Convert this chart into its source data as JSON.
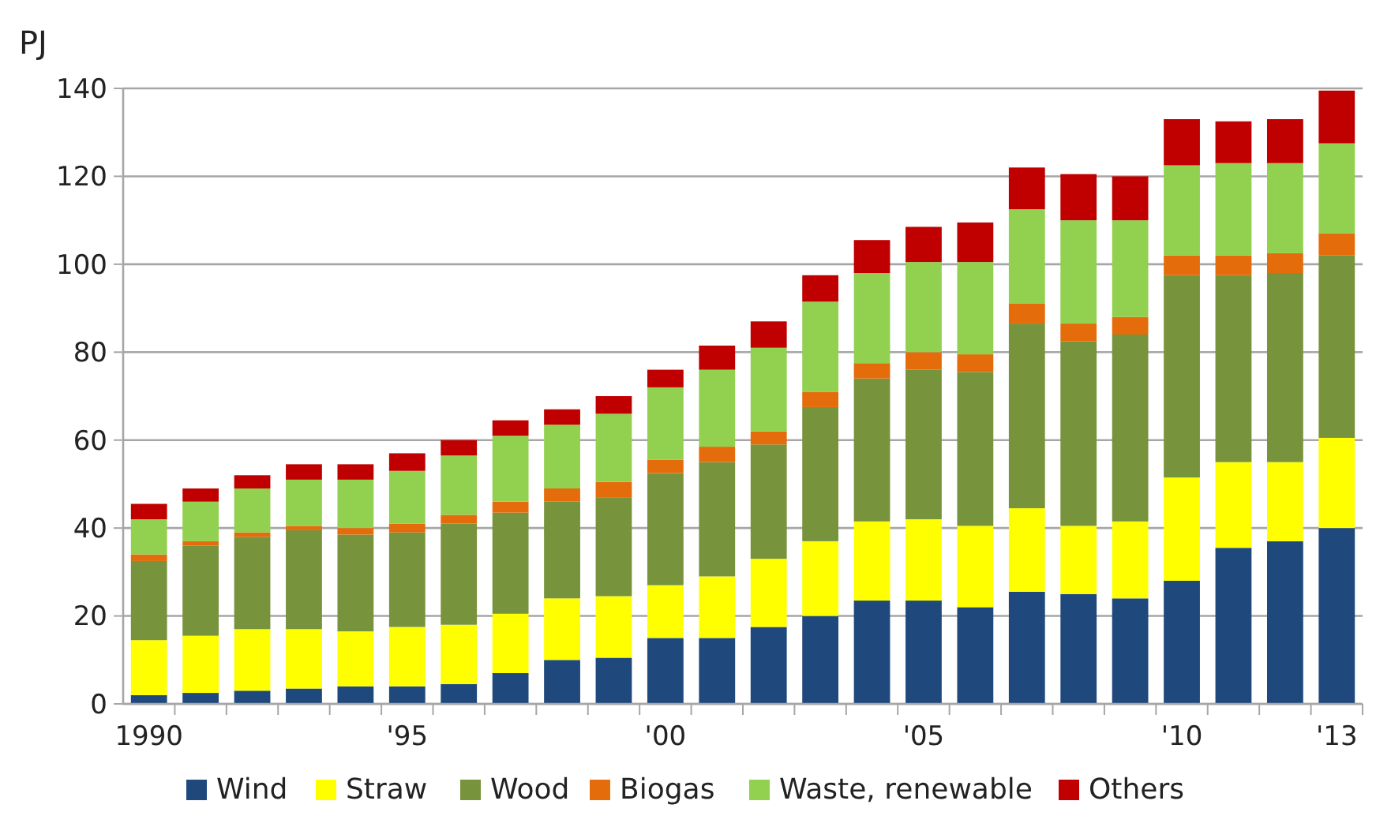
{
  "chart_data": {
    "type": "bar",
    "stacked": true,
    "ylabel": "PJ",
    "categories": [
      "1990",
      null,
      null,
      null,
      null,
      "'95",
      null,
      null,
      null,
      null,
      "'00",
      null,
      null,
      null,
      null,
      "'05",
      null,
      null,
      null,
      null,
      "'10",
      null,
      null,
      "'13"
    ],
    "ylim": [
      0,
      140
    ],
    "yticks": [
      0,
      20,
      40,
      60,
      80,
      100,
      120,
      140
    ],
    "grid": "y",
    "legend": "bottom",
    "series": [
      {
        "name": "Wind",
        "color": "#1f497d",
        "values": [
          2,
          2.5,
          3,
          3.5,
          4,
          4,
          4.5,
          7,
          10,
          10.5,
          15,
          15,
          17.5,
          20,
          23.5,
          23.5,
          22,
          25.5,
          25,
          24,
          28,
          35.5,
          37,
          40
        ]
      },
      {
        "name": "Straw",
        "color": "#ffff00",
        "values": [
          12.5,
          13,
          14,
          13.5,
          12.5,
          13.5,
          13.5,
          13.5,
          14,
          14,
          12,
          14,
          15.5,
          17,
          18,
          18.5,
          18.5,
          19,
          15.5,
          17.5,
          23.5,
          19.5,
          18,
          20.5
        ]
      },
      {
        "name": "Wood",
        "color": "#77933c",
        "values": [
          18,
          20.5,
          21,
          22.5,
          22,
          21.5,
          23,
          23,
          22,
          22.5,
          25.5,
          26,
          26,
          30.5,
          32.5,
          34,
          35,
          42,
          42,
          42.5,
          46,
          42.5,
          43,
          41.5
        ]
      },
      {
        "name": "Biogas",
        "color": "#e46c0a",
        "values": [
          1.5,
          1,
          1,
          1,
          1.5,
          2,
          2,
          2.5,
          3,
          3.5,
          3,
          3.5,
          3,
          3.5,
          3.5,
          4,
          4,
          4.5,
          4,
          4,
          4.5,
          4.5,
          4.5,
          5
        ]
      },
      {
        "name": "Waste, renewable",
        "color": "#92d050",
        "values": [
          8,
          9,
          10,
          10.5,
          11,
          12,
          13.5,
          15,
          14.5,
          15.5,
          16.5,
          17.5,
          19,
          20.5,
          20.5,
          20.5,
          21,
          21.5,
          23.5,
          22,
          20.5,
          21,
          20.5,
          20.5
        ]
      },
      {
        "name": "Others",
        "color": "#c00000",
        "values": [
          3.5,
          3,
          3,
          3.5,
          3.5,
          4,
          3.5,
          3.5,
          3.5,
          4,
          4,
          5.5,
          6,
          6,
          7.5,
          8,
          9,
          9.5,
          10.5,
          10,
          10.5,
          9.5,
          10,
          12
        ]
      }
    ]
  }
}
